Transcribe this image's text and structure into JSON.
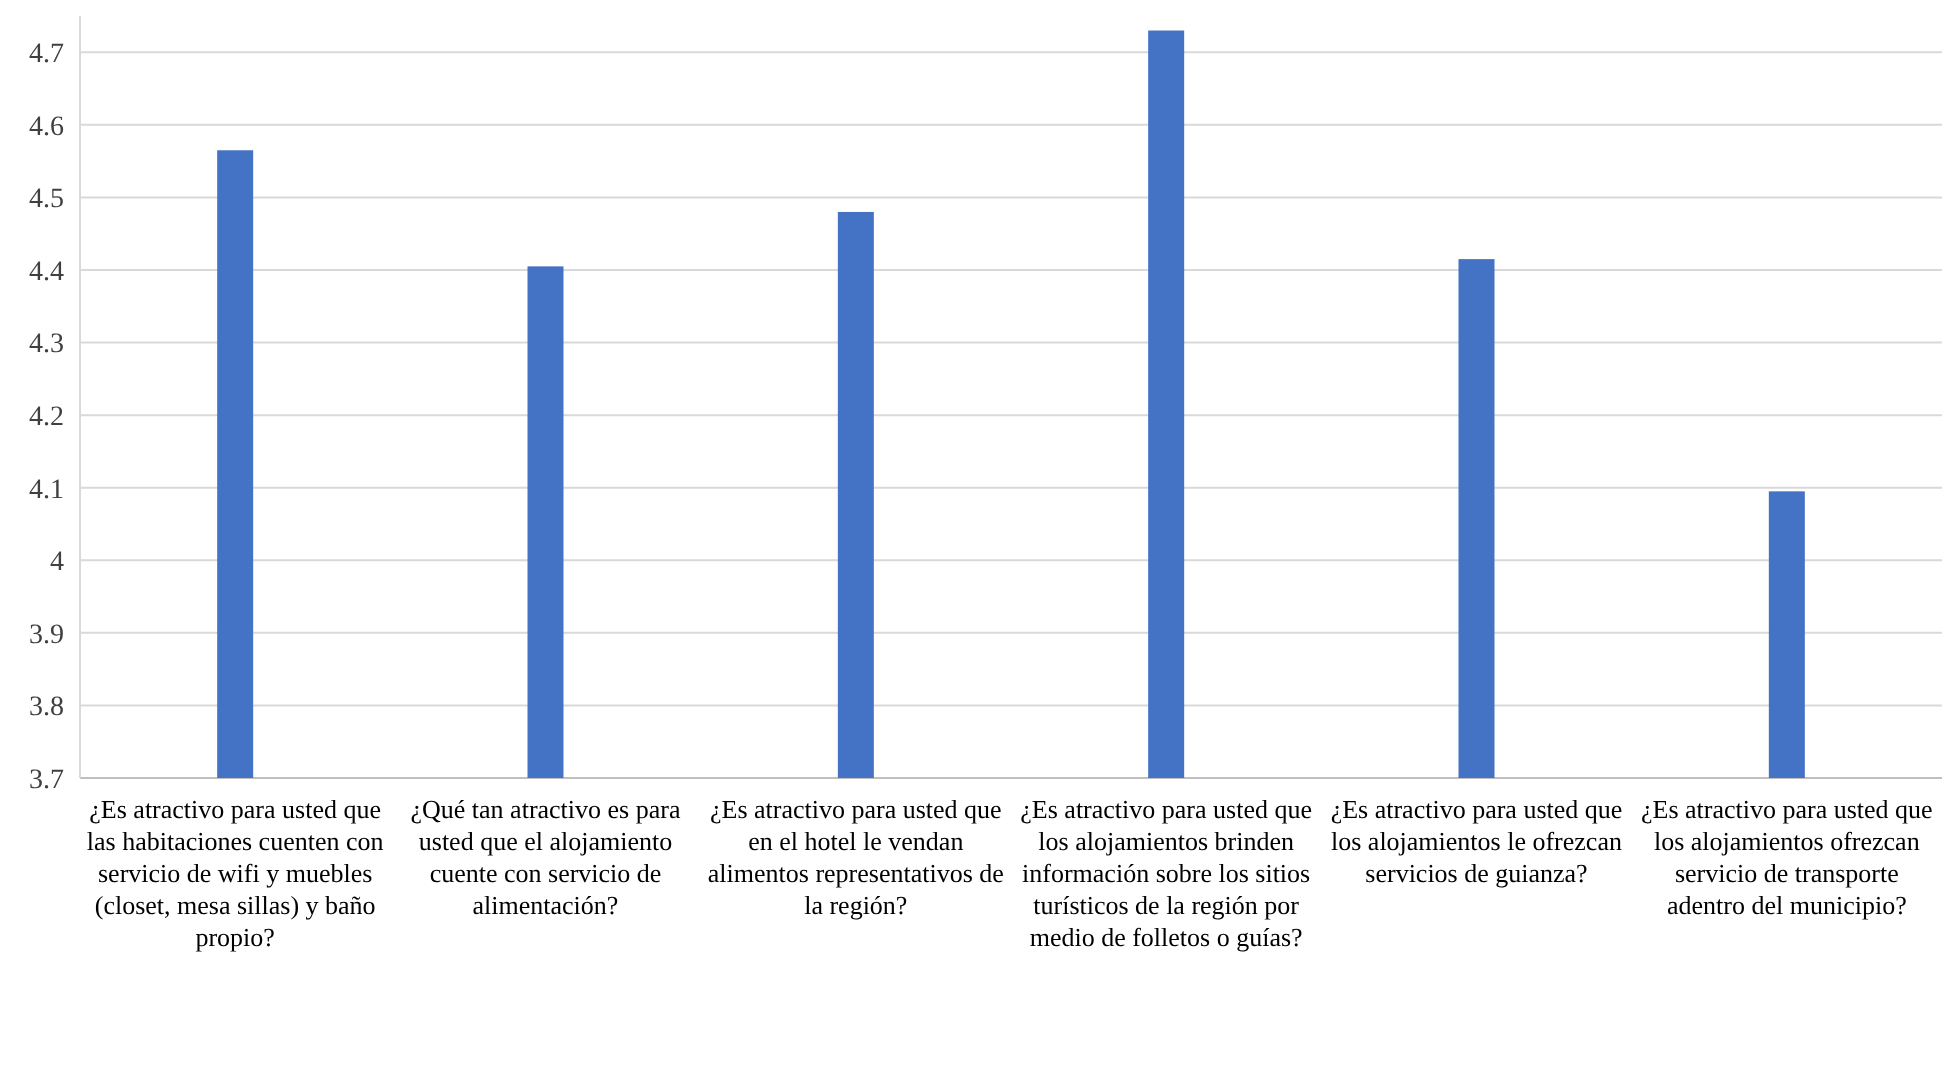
{
  "chart_data": {
    "type": "bar",
    "categories": [
      "¿Es atractivo para usted que las habitaciones cuenten con servicio de wifi y muebles (closet, mesa sillas) y baño propio?",
      "¿Qué tan atractivo es para usted que el alojamiento cuente con servicio de alimentación?",
      "¿Es atractivo para usted que en el hotel le vendan alimentos representativos de la región?",
      "¿Es atractivo para usted que los alojamientos brinden información sobre los sitios turísticos de la región por medio de folletos o guías?",
      "¿Es atractivo para usted  que los alojamientos le ofrezcan servicios de guianza?",
      "¿Es atractivo para usted que los alojamientos ofrezcan servicio de transporte adentro del municipio?"
    ],
    "values": [
      4.565,
      4.405,
      4.48,
      4.73,
      4.415,
      4.095
    ],
    "color": "#4472c4",
    "ylim": [
      3.7,
      4.75
    ],
    "yticks": [
      3.7,
      3.8,
      3.9,
      4,
      4.1,
      4.2,
      4.3,
      4.4,
      4.5,
      4.6,
      4.7
    ],
    "grid": "y"
  }
}
